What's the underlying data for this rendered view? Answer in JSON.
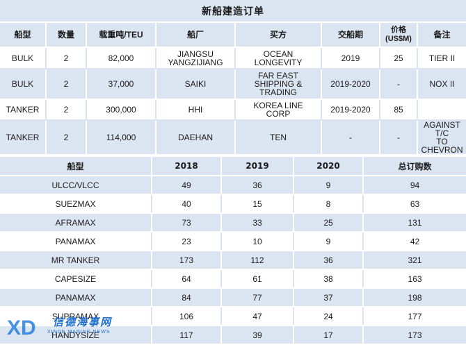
{
  "orders": {
    "title": "新船建造订单",
    "headers": [
      "船型",
      "数量",
      "载重吨/TEU",
      "船厂",
      "买方",
      "交船期",
      "价格\n(US$M)",
      "备注"
    ],
    "rows": [
      [
        "BULK",
        "2",
        "82,000",
        "JIANGSU\nYANGZIJIANG",
        "OCEAN\nLONGEVITY",
        "2019",
        "25",
        "TIER II"
      ],
      [
        "BULK",
        "2",
        "37,000",
        "SAIKI",
        "FAR EAST\nSHIPPING &\nTRADING",
        "2019-2020",
        "-",
        "NOX II"
      ],
      [
        "TANKER",
        "2",
        "300,000",
        "HHI",
        "KOREA LINE\nCORP",
        "2019-2020",
        "85",
        ""
      ],
      [
        "TANKER",
        "2",
        "114,000",
        "DAEHAN",
        "TEN",
        "-",
        "-",
        "AGAINST T/C\nTO CHEVRON"
      ]
    ]
  },
  "summary": {
    "headers": [
      "船型",
      "2018",
      "2019",
      "2020",
      "总订购数"
    ],
    "rows": [
      [
        "ULCC/VLCC",
        "49",
        "36",
        "9",
        "94"
      ],
      [
        "SUEZMAX",
        "40",
        "15",
        "8",
        "63"
      ],
      [
        "AFRAMAX",
        "73",
        "33",
        "25",
        "131"
      ],
      [
        "PANAMAX",
        "23",
        "10",
        "9",
        "42"
      ],
      [
        "MR TANKER",
        "173",
        "112",
        "36",
        "321"
      ],
      [
        "CAPESIZE",
        "64",
        "61",
        "38",
        "163"
      ],
      [
        "PANAMAX",
        "84",
        "77",
        "37",
        "198"
      ],
      [
        "SUPRAMAX",
        "106",
        "47",
        "24",
        "177"
      ],
      [
        "HANDYSIZE",
        "117",
        "39",
        "17",
        "173"
      ]
    ]
  },
  "watermark": {
    "logo_text": "XD",
    "chinese_name": "信德海事网",
    "english_name": "XINDE MARINE NEWS"
  },
  "colors": {
    "band": "#dbe5f1",
    "watermark": "#1e6fd0"
  }
}
